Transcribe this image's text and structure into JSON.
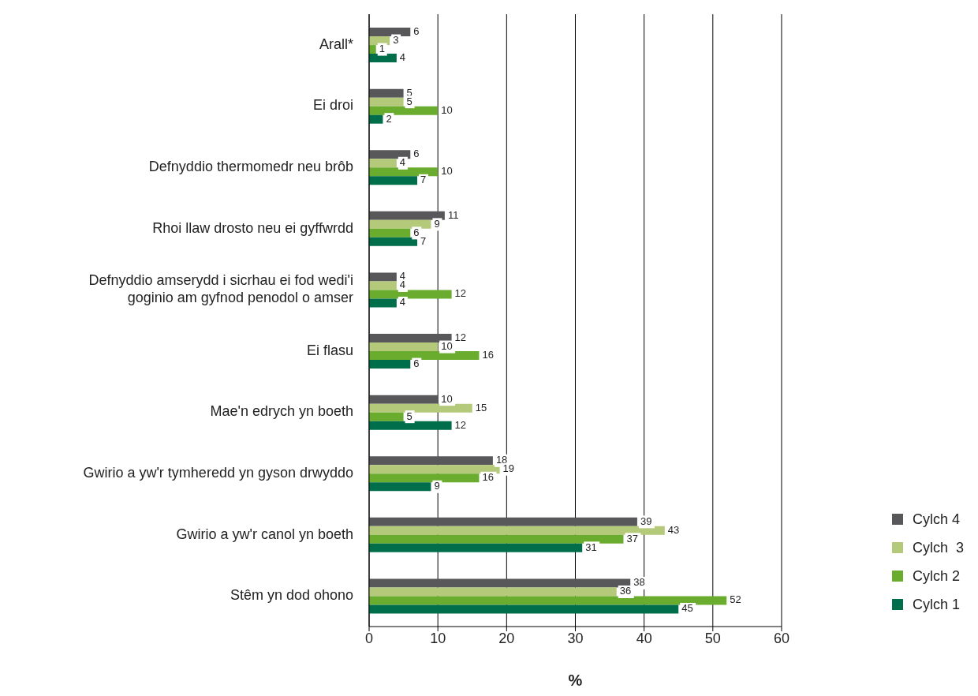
{
  "chart_data": {
    "type": "bar",
    "orientation": "horizontal",
    "xlabel": "%",
    "categories": [
      "Arall*",
      "Ei droi",
      "Defnyddio thermomedr neu brôb",
      "Rhoi llaw drosto neu ei gyffwrdd",
      "Defnyddio amserydd i sicrhau ei fod wedi'i goginio am gyfnod penodol o amser",
      "Ei flasu",
      "Mae'n edrych yn boeth",
      "Gwirio a yw'r tymheredd yn gyson drwyddo",
      "Gwirio a yw'r canol yn boeth",
      "Stêm yn dod ohono"
    ],
    "series": [
      {
        "name": "Cylch 4",
        "color": "#58585a",
        "values": [
          6,
          5,
          6,
          11,
          4,
          12,
          10,
          18,
          39,
          38
        ]
      },
      {
        "name": "Cylch  3",
        "color": "#b5c97a",
        "values": [
          3,
          5,
          4,
          9,
          4,
          10,
          15,
          19,
          43,
          36
        ]
      },
      {
        "name": "Cylch 2",
        "color": "#6aac2e",
        "values": [
          1,
          10,
          10,
          6,
          12,
          16,
          5,
          16,
          37,
          52
        ]
      },
      {
        "name": "Cylch 1",
        "color": "#006e4a",
        "values": [
          4,
          2,
          7,
          7,
          4,
          6,
          12,
          9,
          31,
          45
        ]
      }
    ],
    "xlim": [
      0,
      60
    ],
    "xticks": [
      0,
      10,
      20,
      30,
      40,
      50,
      60
    ],
    "grid": "x",
    "legend": "bottom right",
    "data_labels": true
  }
}
